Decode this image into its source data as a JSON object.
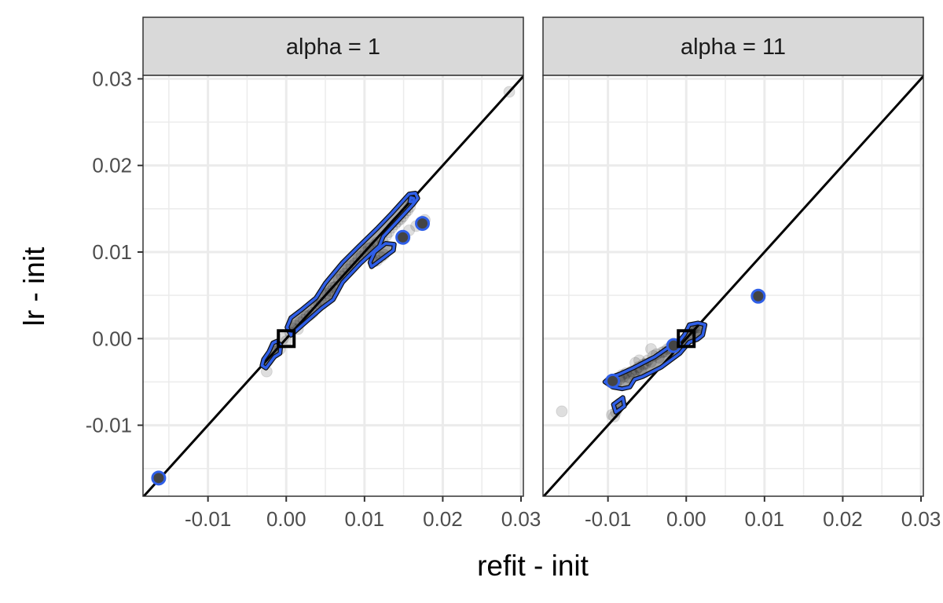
{
  "chart_data": {
    "type": "scatter",
    "xlabel": "refit - init",
    "ylabel": "lr - init",
    "xlim": [
      -0.0183,
      0.0303
    ],
    "ylim": [
      -0.0182,
      0.0304
    ],
    "x_ticks": [
      -0.01,
      0.0,
      0.01,
      0.02,
      0.03
    ],
    "x_tick_labels": [
      "-0.01",
      "0.00",
      "0.01",
      "0.02",
      "0.03"
    ],
    "y_ticks": [
      -0.01,
      0.0,
      0.01,
      0.02,
      0.03
    ],
    "y_tick_labels": [
      "-0.01",
      "0.00",
      "0.01",
      "0.02",
      "0.03"
    ],
    "grid": true,
    "reference_line": "y = x",
    "colors": {
      "point": "#000000",
      "contour": "#2f5fe8",
      "diagonal": "#000000",
      "strip": "#d9d9d9",
      "grid": "#ebebeb"
    },
    "panels": [
      {
        "strip_label": "alpha = 1",
        "points": [
          [
            -0.0163,
            -0.0161
          ],
          [
            -0.0025,
            -0.0038
          ],
          [
            -0.0024,
            -0.0026
          ],
          [
            -0.002,
            -0.002
          ],
          [
            -0.0015,
            -0.0015
          ],
          [
            -0.0013,
            -0.0008
          ],
          [
            -0.0008,
            -0.0012
          ],
          [
            -0.0004,
            0.0
          ],
          [
            0.0,
            -0.0003
          ],
          [
            0.0005,
            0.0007
          ],
          [
            0.0008,
            0.0012
          ],
          [
            0.0012,
            0.0015
          ],
          [
            0.0015,
            0.0011
          ],
          [
            0.0018,
            0.0019
          ],
          [
            0.0022,
            0.0022
          ],
          [
            0.0026,
            0.0026
          ],
          [
            0.003,
            0.0027
          ],
          [
            0.0034,
            0.003
          ],
          [
            0.0038,
            0.0038
          ],
          [
            0.0042,
            0.004
          ],
          [
            0.0045,
            0.0042
          ],
          [
            0.005,
            0.005
          ],
          [
            0.0053,
            0.0052
          ],
          [
            0.0057,
            0.0055
          ],
          [
            0.006,
            0.0059
          ],
          [
            0.0063,
            0.006
          ],
          [
            0.0067,
            0.0068
          ],
          [
            0.0071,
            0.0072
          ],
          [
            0.0075,
            0.0075
          ],
          [
            0.0079,
            0.008
          ],
          [
            0.0083,
            0.0084
          ],
          [
            0.0088,
            0.0087
          ],
          [
            0.0092,
            0.0092
          ],
          [
            0.0096,
            0.0095
          ],
          [
            0.0101,
            0.01
          ],
          [
            0.0105,
            0.0104
          ],
          [
            0.0108,
            0.0105
          ],
          [
            0.0113,
            0.0108
          ],
          [
            0.0116,
            0.0111
          ],
          [
            0.0112,
            0.0089
          ],
          [
            0.0116,
            0.009
          ],
          [
            0.0121,
            0.0094
          ],
          [
            0.0125,
            0.0097
          ],
          [
            0.0123,
            0.0113
          ],
          [
            0.0128,
            0.0119
          ],
          [
            0.0131,
            0.0123
          ],
          [
            0.0135,
            0.0128
          ],
          [
            0.0139,
            0.0132
          ],
          [
            0.0142,
            0.0135
          ],
          [
            0.0146,
            0.0138
          ],
          [
            0.0149,
            0.0141
          ],
          [
            0.0152,
            0.0145
          ],
          [
            0.0155,
            0.0148
          ],
          [
            0.0158,
            0.0152
          ],
          [
            0.016,
            0.0158
          ],
          [
            0.0151,
            0.0116
          ],
          [
            0.0157,
            0.0125
          ],
          [
            0.0166,
            0.013
          ],
          [
            0.0173,
            0.0133
          ],
          [
            0.0177,
            0.0137
          ],
          [
            0.0285,
            0.0285
          ]
        ],
        "contours": [
          [
            [
              -0.0026,
              -0.0034
            ],
            [
              -0.0015,
              -0.0021
            ],
            [
              -0.0008,
              -0.0017
            ],
            [
              -0.0007,
              -0.0008
            ],
            [
              -0.0012,
              -0.0003
            ],
            [
              -0.0017,
              -0.0005
            ],
            [
              -0.0022,
              -0.0015
            ],
            [
              -0.0029,
              -0.0024
            ],
            [
              -0.0031,
              -0.0031
            ]
          ],
          [
            [
              0.0006,
              0.0004
            ],
            [
              0.0025,
              0.0019
            ],
            [
              0.0045,
              0.0035
            ],
            [
              0.006,
              0.0045
            ],
            [
              0.0072,
              0.0065
            ],
            [
              0.0095,
              0.0087
            ],
            [
              0.0113,
              0.0102
            ],
            [
              0.0119,
              0.0107
            ],
            [
              0.0124,
              0.0118
            ],
            [
              0.0162,
              0.0155
            ],
            [
              0.0168,
              0.0162
            ],
            [
              0.0165,
              0.0168
            ],
            [
              0.0157,
              0.0167
            ],
            [
              0.0135,
              0.0145
            ],
            [
              0.0117,
              0.0128
            ],
            [
              0.0092,
              0.0106
            ],
            [
              0.0072,
              0.0088
            ],
            [
              0.005,
              0.0064
            ],
            [
              0.0038,
              0.0047
            ],
            [
              0.0019,
              0.0033
            ],
            [
              0.0006,
              0.0024
            ],
            [
              0.0001,
              0.0013
            ]
          ],
          [
            [
              0.0109,
              0.0083
            ],
            [
              0.0137,
              0.0102
            ],
            [
              0.0138,
              0.0109
            ],
            [
              0.0127,
              0.011
            ],
            [
              0.0113,
              0.01
            ],
            [
              0.0107,
              0.0088
            ]
          ],
          [
            [
              0.0158,
              0.0158
            ],
            [
              0.0162,
              0.0158
            ],
            [
              0.0163,
              0.0162
            ],
            [
              0.0159,
              0.0163
            ]
          ],
          [
            [
              -0.0162,
              -0.0162
            ],
            [
              -0.0158,
              -0.0162
            ],
            [
              -0.0158,
              -0.0158
            ],
            [
              -0.0162,
              -0.0158
            ]
          ]
        ],
        "centers": [
          [
            0.0,
            0.0
          ]
        ],
        "markers": [
          [
            -0.0163,
            -0.0161
          ],
          [
            0.0149,
            0.0117
          ],
          [
            0.0174,
            0.0133
          ]
        ]
      },
      {
        "strip_label": "alpha = 11",
        "points": [
          [
            -0.0159,
            -0.0084
          ],
          [
            -0.0092,
            -0.009
          ],
          [
            -0.009,
            -0.0085
          ],
          [
            -0.0087,
            -0.0078
          ],
          [
            -0.0085,
            -0.0075
          ],
          [
            -0.0094,
            -0.0049
          ],
          [
            -0.009,
            -0.0052
          ],
          [
            -0.0085,
            -0.0047
          ],
          [
            -0.0082,
            -0.0042
          ],
          [
            -0.008,
            -0.0044
          ],
          [
            -0.0077,
            -0.004
          ],
          [
            -0.0073,
            -0.0045
          ],
          [
            -0.007,
            -0.0038
          ],
          [
            -0.0067,
            -0.0042
          ],
          [
            -0.0064,
            -0.0036
          ],
          [
            -0.0061,
            -0.0033
          ],
          [
            -0.0058,
            -0.0037
          ],
          [
            -0.0055,
            -0.003
          ],
          [
            -0.0052,
            -0.0029
          ],
          [
            -0.0049,
            -0.0025
          ],
          [
            -0.0045,
            -0.0027
          ],
          [
            -0.0042,
            -0.002
          ],
          [
            -0.0038,
            -0.0018
          ],
          [
            -0.0035,
            -0.0022
          ],
          [
            -0.0031,
            -0.0016
          ],
          [
            -0.0028,
            -0.0015
          ],
          [
            -0.0024,
            -0.0012
          ],
          [
            -0.0021,
            -0.0011
          ],
          [
            -0.0017,
            -0.0009
          ],
          [
            -0.0014,
            -0.0008
          ],
          [
            -0.001,
            -0.0006
          ],
          [
            -0.0007,
            -0.0005
          ],
          [
            -0.0003,
            -0.0004
          ],
          [
            0.0001,
            0.0002
          ],
          [
            0.0004,
            0.0006
          ],
          [
            0.0007,
            0.001
          ],
          [
            0.001,
            0.0012
          ],
          [
            0.0013,
            0.0009
          ],
          [
            0.0016,
            0.0013
          ],
          [
            0.0015,
            0.0004
          ],
          [
            -0.0065,
            -0.0028
          ],
          [
            -0.006,
            -0.0025
          ],
          [
            -0.0045,
            -0.0012
          ],
          [
            -0.0095,
            -0.0088
          ],
          [
            0.0092,
            0.0049
          ]
        ],
        "contours": [
          [
            [
              -0.0098,
              -0.0045
            ],
            [
              -0.0085,
              -0.0041
            ],
            [
              -0.0068,
              -0.0034
            ],
            [
              -0.004,
              -0.0021
            ],
            [
              -0.0016,
              -0.0006
            ],
            [
              -0.0008,
              -0.0002
            ],
            [
              -0.0002,
              0.0005
            ],
            [
              0.0004,
              0.0016
            ],
            [
              0.0015,
              0.0018
            ],
            [
              0.0024,
              0.0016
            ],
            [
              0.0021,
              0.0004
            ],
            [
              0.0014,
              -0.0001
            ],
            [
              0.0004,
              -0.0004
            ],
            [
              -0.0008,
              -0.0017
            ],
            [
              -0.0032,
              -0.0033
            ],
            [
              -0.0056,
              -0.0044
            ],
            [
              -0.0066,
              -0.0047
            ],
            [
              -0.0072,
              -0.0056
            ],
            [
              -0.0082,
              -0.0058
            ],
            [
              -0.0094,
              -0.0056
            ],
            [
              -0.0104,
              -0.005
            ]
          ],
          [
            [
              -0.0093,
              -0.0076
            ],
            [
              -0.0081,
              -0.0068
            ],
            [
              -0.0079,
              -0.0078
            ],
            [
              -0.009,
              -0.0085
            ]
          ],
          [
            [
              0.0088,
              0.0047
            ],
            [
              0.0096,
              0.0047
            ],
            [
              0.0096,
              0.0052
            ],
            [
              0.0088,
              0.0052
            ]
          ]
        ],
        "centers": [
          [
            0.0,
            0.0
          ]
        ],
        "markers": [
          [
            -0.0094,
            -0.0049
          ],
          [
            -0.0016,
            -0.0008
          ],
          [
            0.0092,
            0.0049
          ]
        ]
      }
    ]
  }
}
